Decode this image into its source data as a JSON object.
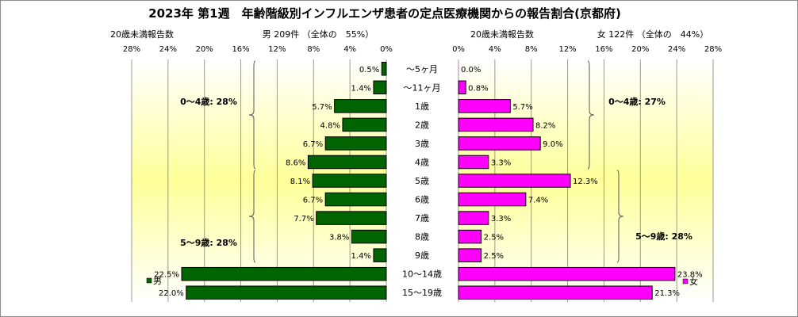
{
  "chart_data": {
    "type": "bar",
    "title": "2023年 第1週　年齢階級別インフルエンザ患者の定点医療機関からの報告割合(京都府)",
    "categories": [
      "～5ヶ月",
      "～11ヶ月",
      "1歳",
      "2歳",
      "3歳",
      "4歳",
      "5歳",
      "6歳",
      "7歳",
      "8歳",
      "9歳",
      "10～14歳",
      "15～19歳"
    ],
    "x_ticks": [
      "28%",
      "24%",
      "20%",
      "16%",
      "12%",
      "8%",
      "4%",
      "0%"
    ],
    "x_ticks_right": [
      "0%",
      "4%",
      "8%",
      "12%",
      "16%",
      "20%",
      "24%",
      "28%"
    ],
    "xlim": [
      0,
      28
    ],
    "left_panel": {
      "heading": "20歳未満報告数",
      "series_header": "男 209件 （全体の　55%）"
    },
    "right_panel": {
      "heading": "20歳未満報告数",
      "series_header": "女 122件 （全体の　44%）"
    },
    "series": [
      {
        "name": "男",
        "color": "#006400",
        "values": [
          0.5,
          1.4,
          5.7,
          4.8,
          6.7,
          8.6,
          8.1,
          6.7,
          7.7,
          3.8,
          1.4,
          22.5,
          22.0
        ],
        "labels": [
          "0.5%",
          "1.4%",
          "5.7%",
          "4.8%",
          "6.7%",
          "8.6%",
          "8.1%",
          "6.7%",
          "7.7%",
          "3.8%",
          "1.4%",
          "22.5%",
          "22.0%"
        ]
      },
      {
        "name": "女",
        "color": "#ff00ff",
        "values": [
          0.0,
          0.8,
          5.7,
          8.2,
          9.0,
          3.3,
          12.3,
          7.4,
          3.3,
          2.5,
          2.5,
          23.8,
          21.3
        ],
        "labels": [
          "0.0%",
          "0.8%",
          "5.7%",
          "8.2%",
          "9.0%",
          "3.3%",
          "12.3%",
          "7.4%",
          "3.3%",
          "2.5%",
          "2.5%",
          "23.8%",
          "21.3%"
        ]
      }
    ],
    "annotations": {
      "male_0_4": "0～4歳: 28%",
      "male_5_9": "5～9歳: 28%",
      "female_0_4": "0～4歳: 27%",
      "female_5_9": "5～9歳: 28%"
    },
    "background": "yellow-gradient",
    "grid": true
  }
}
